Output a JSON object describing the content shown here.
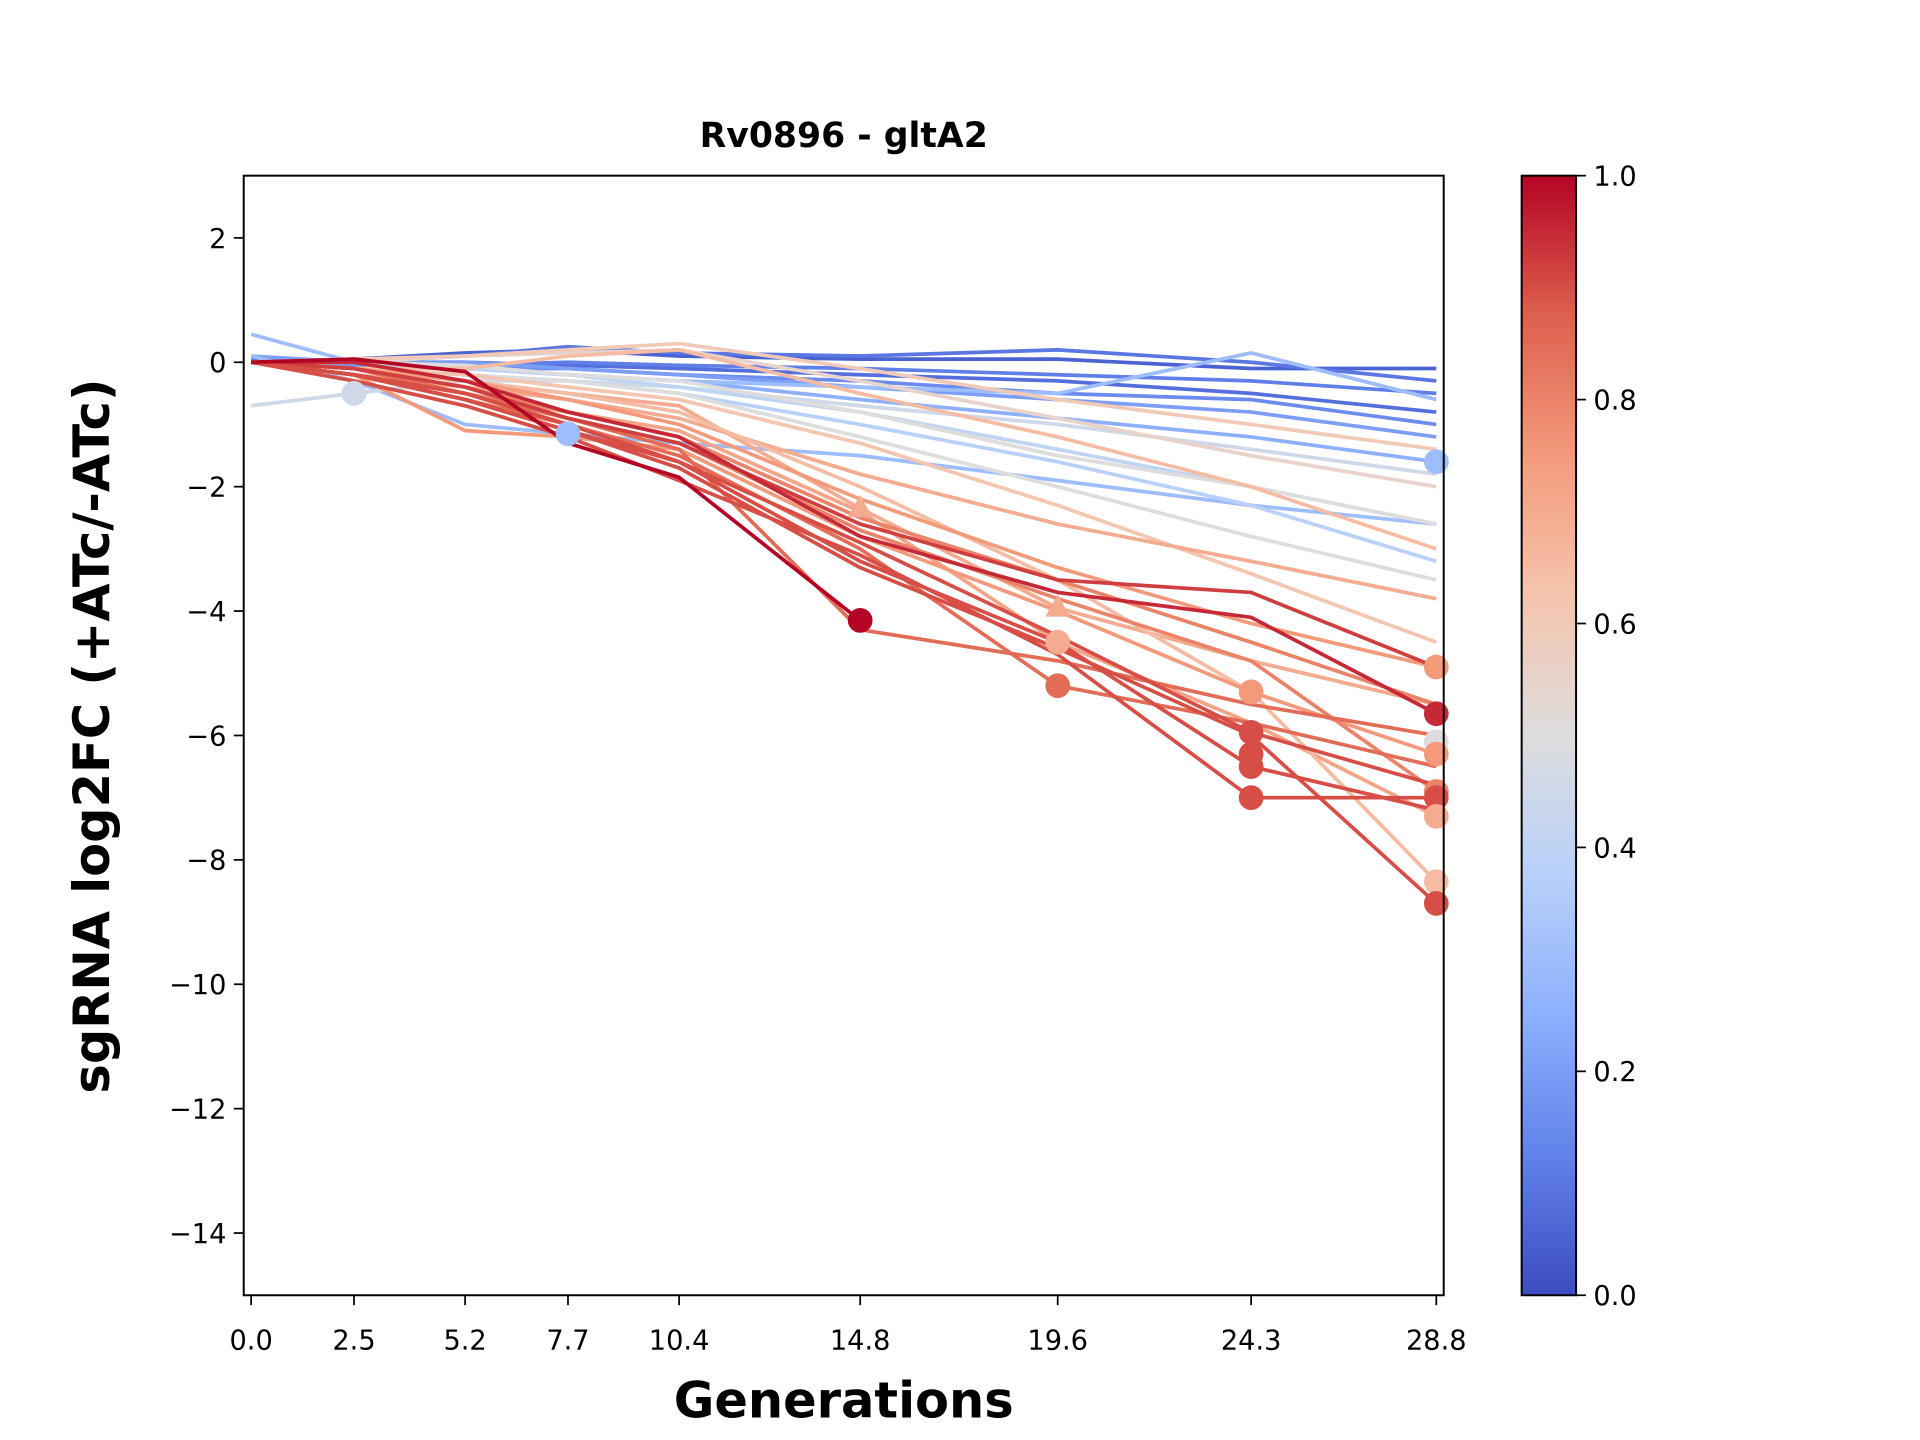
{
  "chart_data": {
    "type": "line",
    "title": "Rv0896 - gltA2",
    "xlabel": "Generations",
    "ylabel": "sgRNA log2FC (+ATc/-ATc)",
    "x": [
      0.0,
      2.5,
      5.2,
      7.7,
      10.4,
      14.8,
      19.6,
      24.3,
      28.8
    ],
    "x_tick_labels": [
      "0.0",
      "2.5",
      "5.2",
      "7.7",
      "10.4",
      "14.8",
      "19.6",
      "24.3",
      "28.8"
    ],
    "y_ticks": [
      2,
      0,
      -2,
      -4,
      -6,
      -8,
      -10,
      -12,
      -14
    ],
    "y_tick_labels": [
      "2",
      "0",
      "−2",
      "−4",
      "−6",
      "−8",
      "−10",
      "−12",
      "−14"
    ],
    "xlim": [
      -0.18,
      28.98
    ],
    "ylim": [
      -15,
      3
    ],
    "grid": false,
    "colormap": "coolwarm",
    "colorbar": {
      "range": [
        0,
        1
      ],
      "tick_labels": [
        "0.0",
        "0.2",
        "0.4",
        "0.6",
        "0.8",
        "1.0"
      ],
      "ticks": [
        0,
        0.2,
        0.4,
        0.6,
        0.8,
        1.0
      ]
    },
    "series": [
      {
        "c": 0.05,
        "y": [
          0,
          0.05,
          0.15,
          0.2,
          0.1,
          0.05,
          0.05,
          -0.1,
          -0.1
        ]
      },
      {
        "c": 0.1,
        "y": [
          0.05,
          0,
          0.1,
          0.25,
          0.15,
          0.1,
          0.2,
          0,
          -0.3
        ]
      },
      {
        "c": 0.08,
        "y": [
          0,
          0,
          0,
          -0.05,
          -0.1,
          -0.2,
          -0.3,
          -0.5,
          -0.8
        ]
      },
      {
        "c": 0.15,
        "y": [
          0,
          -0.05,
          -0.1,
          -0.1,
          -0.2,
          -0.3,
          -0.5,
          -0.6,
          -1.0
        ]
      },
      {
        "c": 0.12,
        "y": [
          0,
          0,
          -0.05,
          0,
          -0.05,
          -0.1,
          -0.2,
          -0.3,
          -0.5
        ]
      },
      {
        "c": 0.2,
        "y": [
          0.1,
          0,
          0,
          -0.1,
          -0.2,
          -0.4,
          -0.6,
          -0.8,
          -1.2
        ]
      },
      {
        "c": 0.25,
        "y": [
          0,
          0,
          -0.1,
          -0.2,
          -0.3,
          -0.6,
          -0.9,
          -1.2,
          -1.6
        ]
      },
      {
        "c": 0.3,
        "y": [
          0.45,
          0,
          -0.1,
          -0.2,
          -0.3,
          -0.4,
          -0.5,
          0.15,
          -0.6
        ]
      },
      {
        "c": 0.3,
        "y": [
          0.1,
          -0.3,
          -1.0,
          -1.15,
          -1.3,
          -1.5,
          -1.9,
          -2.3,
          -2.6
        ]
      },
      {
        "c": 0.45,
        "y": [
          -0.7,
          -0.5,
          -0.3,
          -0.3,
          -0.4,
          -0.7,
          -1.0,
          -1.4,
          -1.8
        ]
      },
      {
        "c": 0.38,
        "y": [
          0,
          -0.1,
          -0.2,
          -0.3,
          -0.5,
          -1.0,
          -1.6,
          -2.3,
          -3.2
        ]
      },
      {
        "c": 0.4,
        "y": [
          0,
          0,
          -0.1,
          -0.2,
          -0.4,
          -0.8,
          -1.4,
          -2.0,
          -2.6
        ]
      },
      {
        "c": 0.5,
        "y": [
          0,
          0,
          -0.05,
          -0.2,
          -0.3,
          -0.8,
          -1.5,
          -2.0,
          -2.6
        ]
      },
      {
        "c": 0.5,
        "y": [
          0,
          -0.1,
          -0.2,
          -0.3,
          -0.5,
          -1.2,
          -2.0,
          -2.8,
          -3.5
        ]
      },
      {
        "c": 0.55,
        "y": [
          0,
          0,
          0.1,
          0.15,
          0.2,
          -0.3,
          -0.9,
          -1.5,
          -2.0
        ]
      },
      {
        "c": 0.6,
        "y": [
          0,
          0.05,
          0.1,
          0.2,
          0.3,
          -0.1,
          -0.6,
          -1.0,
          -1.4
        ]
      },
      {
        "c": 0.65,
        "y": [
          0,
          -0.1,
          -0.1,
          0.1,
          0.2,
          -0.5,
          -1.2,
          -2.0,
          -3.0
        ]
      },
      {
        "c": 0.62,
        "y": [
          0,
          -0.1,
          -0.2,
          -0.4,
          -0.6,
          -1.3,
          -2.3,
          -3.4,
          -4.5
        ]
      },
      {
        "c": 0.7,
        "y": [
          0,
          -0.2,
          -0.4,
          -0.6,
          -0.9,
          -1.8,
          -2.6,
          -3.2,
          -3.8
        ]
      },
      {
        "c": 0.7,
        "y": [
          0,
          -0.1,
          -0.3,
          -0.5,
          -0.7,
          -2.35,
          -3.95,
          -4.8,
          -5.5
        ]
      },
      {
        "c": 0.72,
        "y": [
          0,
          -0.2,
          -0.5,
          -0.8,
          -1.1,
          -2.4,
          -4.5,
          -5.8,
          -7.3
        ]
      },
      {
        "c": 0.65,
        "y": [
          0,
          -0.1,
          -0.3,
          -0.5,
          -0.8,
          -2.0,
          -3.5,
          -5.3,
          -8.35
        ]
      },
      {
        "c": 0.75,
        "y": [
          0,
          -0.2,
          -1.1,
          -1.2,
          -1.4,
          -2.8,
          -4.0,
          -5.3,
          -6.3
        ]
      },
      {
        "c": 0.75,
        "y": [
          0,
          -0.1,
          -0.3,
          -0.6,
          -1.0,
          -2.2,
          -3.3,
          -4.2,
          -4.9
        ]
      },
      {
        "c": 0.8,
        "y": [
          0,
          -0.2,
          -0.5,
          -0.9,
          -1.3,
          -2.7,
          -3.8,
          -4.8,
          -6.9
        ]
      },
      {
        "c": 0.8,
        "y": [
          0,
          -0.1,
          -0.4,
          -0.8,
          -1.2,
          -2.5,
          -3.5,
          -4.5,
          -5.5
        ]
      },
      {
        "c": 0.85,
        "y": [
          0,
          -0.2,
          -0.6,
          -1.0,
          -1.5,
          -3.0,
          -5.2,
          -5.8,
          -6.5
        ]
      },
      {
        "c": 0.85,
        "y": [
          0,
          -0.1,
          -0.5,
          -0.9,
          -1.4,
          -4.3,
          -4.8,
          -5.5,
          -6.0
        ]
      },
      {
        "c": 0.9,
        "y": [
          0,
          -0.2,
          -0.6,
          -1.1,
          -1.7,
          -3.3,
          -4.6,
          -6.0,
          -8.7
        ]
      },
      {
        "c": 0.9,
        "y": [
          0,
          -0.3,
          -0.7,
          -1.2,
          -1.9,
          -3.1,
          -4.7,
          -7.0,
          -7.0
        ]
      },
      {
        "c": 0.9,
        "y": [
          0,
          -0.2,
          -0.5,
          -1.0,
          -1.6,
          -2.9,
          -4.4,
          -5.95,
          -6.8
        ]
      },
      {
        "c": 0.92,
        "y": [
          0,
          -0.1,
          -0.4,
          -0.9,
          -1.3,
          -2.6,
          -3.5,
          -3.7,
          -4.9
        ]
      },
      {
        "c": 0.95,
        "y": [
          0,
          0,
          -0.3,
          -0.8,
          -1.2,
          -2.8,
          -3.7,
          -4.1,
          -5.65
        ]
      },
      {
        "c": 0.9,
        "y": [
          0,
          -0.2,
          -0.6,
          -1.1,
          -1.6,
          -3.2,
          -4.5,
          -6.5,
          -7.2
        ]
      },
      {
        "c": 1.0,
        "y": [
          0,
          0.05,
          -0.15,
          -1.3,
          -1.85,
          -4.15,
          null,
          null,
          null
        ]
      }
    ],
    "markers": [
      {
        "x": 2.5,
        "y": -0.5,
        "c": 0.45,
        "shape": "circle"
      },
      {
        "x": 7.7,
        "y": -1.15,
        "c": 0.3,
        "shape": "circle"
      },
      {
        "x": 14.8,
        "y": -4.15,
        "c": 1.0,
        "shape": "circle"
      },
      {
        "x": 14.8,
        "y": -2.35,
        "c": 0.7,
        "shape": "triangle"
      },
      {
        "x": 19.6,
        "y": -3.95,
        "c": 0.7,
        "shape": "triangle"
      },
      {
        "x": 19.6,
        "y": -4.5,
        "c": 0.7,
        "shape": "circle"
      },
      {
        "x": 19.6,
        "y": -5.2,
        "c": 0.85,
        "shape": "circle"
      },
      {
        "x": 24.3,
        "y": -5.3,
        "c": 0.75,
        "shape": "circle"
      },
      {
        "x": 24.3,
        "y": -5.95,
        "c": 0.9,
        "shape": "circle"
      },
      {
        "x": 24.3,
        "y": -6.3,
        "c": 0.9,
        "shape": "circle"
      },
      {
        "x": 24.3,
        "y": -6.5,
        "c": 0.9,
        "shape": "circle"
      },
      {
        "x": 24.3,
        "y": -7.0,
        "c": 0.9,
        "shape": "circle"
      },
      {
        "x": 28.8,
        "y": -1.6,
        "c": 0.3,
        "shape": "circle"
      },
      {
        "x": 28.8,
        "y": -4.9,
        "c": 0.75,
        "shape": "circle"
      },
      {
        "x": 28.8,
        "y": -5.65,
        "c": 0.95,
        "shape": "circle"
      },
      {
        "x": 28.8,
        "y": -6.1,
        "c": 0.5,
        "shape": "circle"
      },
      {
        "x": 28.8,
        "y": -6.3,
        "c": 0.75,
        "shape": "circle"
      },
      {
        "x": 28.8,
        "y": -6.9,
        "c": 0.8,
        "shape": "circle"
      },
      {
        "x": 28.8,
        "y": -7.0,
        "c": 0.9,
        "shape": "circle"
      },
      {
        "x": 28.8,
        "y": -7.3,
        "c": 0.7,
        "shape": "circle"
      },
      {
        "x": 28.8,
        "y": -8.35,
        "c": 0.65,
        "shape": "circle"
      },
      {
        "x": 28.8,
        "y": -8.7,
        "c": 0.9,
        "shape": "circle"
      }
    ]
  }
}
